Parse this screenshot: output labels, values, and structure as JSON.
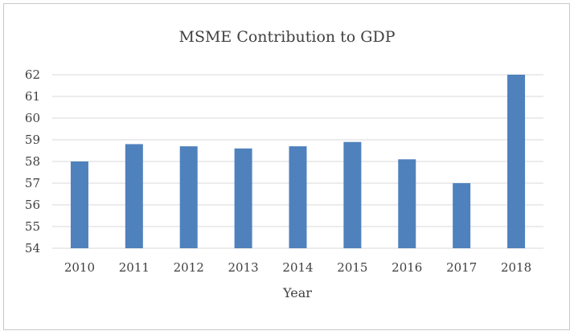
{
  "chart_data": {
    "type": "bar",
    "title": "MSME Contribution to GDP",
    "xlabel": "Year",
    "ylabel": "",
    "categories": [
      "2010",
      "2011",
      "2012",
      "2013",
      "2014",
      "2015",
      "2016",
      "2017",
      "2018"
    ],
    "values": [
      58.0,
      58.8,
      58.7,
      58.6,
      58.7,
      58.9,
      58.1,
      57.0,
      62.0
    ],
    "ylim": [
      54,
      62
    ],
    "yticks": [
      "54",
      "55",
      "56",
      "57",
      "58",
      "59",
      "60",
      "61",
      "62"
    ],
    "grid": true,
    "legend": "none",
    "colors": {
      "bar": "#4f81bd",
      "grid": "#d9d9d9",
      "text": "#404040",
      "border": "#c8c8c8"
    }
  }
}
